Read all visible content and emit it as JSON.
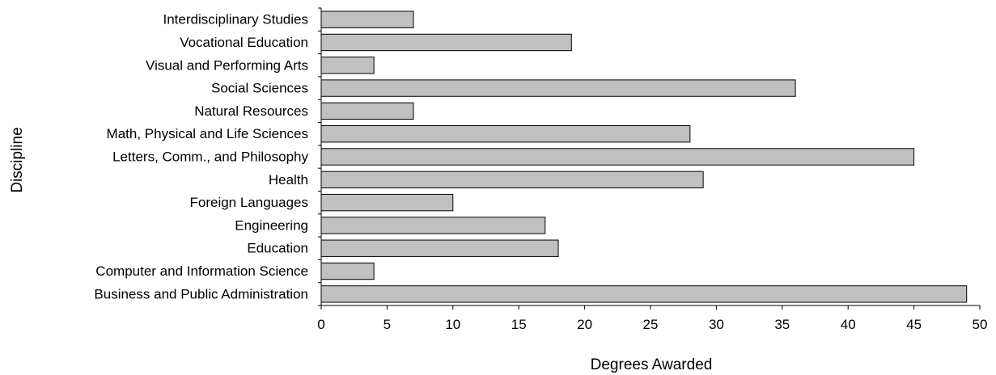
{
  "chart_data": {
    "type": "bar",
    "orientation": "horizontal",
    "categories": [
      "Interdisciplinary Studies",
      "Vocational Education",
      "Visual and Performing Arts",
      "Social Sciences",
      "Natural Resources",
      "Math, Physical and Life Sciences",
      "Letters, Comm., and Philosophy",
      "Health",
      "Foreign Languages",
      "Engineering",
      "Education",
      "Computer and Information Science",
      "Business and Public Administration"
    ],
    "values": [
      7,
      19,
      4,
      36,
      7,
      28,
      45,
      29,
      10,
      17,
      18,
      4,
      49
    ],
    "xlabel": "Degrees Awarded",
    "ylabel": "Discipline",
    "xlim": [
      0,
      50
    ],
    "xticks": [
      "0",
      "5",
      "10",
      "15",
      "20",
      "25",
      "30",
      "35",
      "40",
      "45",
      "50"
    ],
    "grid": false,
    "bar_color": "#c0c0c0",
    "bar_edge_color": "#000000"
  }
}
